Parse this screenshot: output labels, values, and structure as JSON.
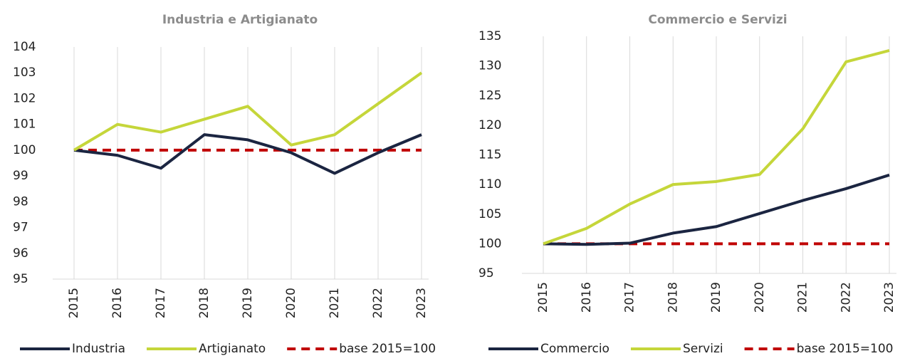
{
  "chart_data": [
    {
      "type": "line",
      "title": "Industria e Artigianato",
      "categories": [
        "2015",
        "2016",
        "2017",
        "2018",
        "2019",
        "2020",
        "2021",
        "2022",
        "2023"
      ],
      "series": [
        {
          "name": "Industria",
          "color": "#1b2541",
          "values": [
            100,
            99.8,
            99.3,
            100.6,
            100.4,
            99.9,
            99.1,
            99.9,
            100.6
          ]
        },
        {
          "name": "Artigianato",
          "color": "#c5d63a",
          "values": [
            100,
            101.0,
            100.7,
            101.2,
            101.7,
            100.2,
            100.6,
            101.8,
            103.0
          ]
        },
        {
          "name": "base 2015=100",
          "color": "#c00000",
          "line_style": "dashed",
          "values": [
            100,
            100,
            100,
            100,
            100,
            100,
            100,
            100,
            100
          ]
        }
      ],
      "ylim": [
        95,
        104
      ],
      "yticks": [
        95,
        96,
        97,
        98,
        99,
        100,
        101,
        102,
        103,
        104
      ],
      "grid": true,
      "legend": "bottom"
    },
    {
      "type": "line",
      "title": "Commercio e Servizi",
      "categories": [
        "2015",
        "2016",
        "2017",
        "2018",
        "2019",
        "2020",
        "2021",
        "2022",
        "2023"
      ],
      "series": [
        {
          "name": "Commercio",
          "color": "#1b2541",
          "values": [
            100,
            99.9,
            100.1,
            101.8,
            102.9,
            105.1,
            107.3,
            109.3,
            111.6
          ]
        },
        {
          "name": "Servizi",
          "color": "#c5d63a",
          "values": [
            100,
            102.6,
            106.7,
            110.0,
            110.5,
            111.7,
            119.4,
            130.7,
            132.6
          ]
        },
        {
          "name": "base 2015=100",
          "color": "#c00000",
          "line_style": "dashed",
          "values": [
            100,
            100,
            100,
            100,
            100,
            100,
            100,
            100,
            100
          ]
        }
      ],
      "ylim": [
        95,
        135
      ],
      "yticks": [
        95,
        100,
        105,
        110,
        115,
        120,
        125,
        130,
        135
      ],
      "grid": true,
      "legend": "bottom"
    }
  ]
}
